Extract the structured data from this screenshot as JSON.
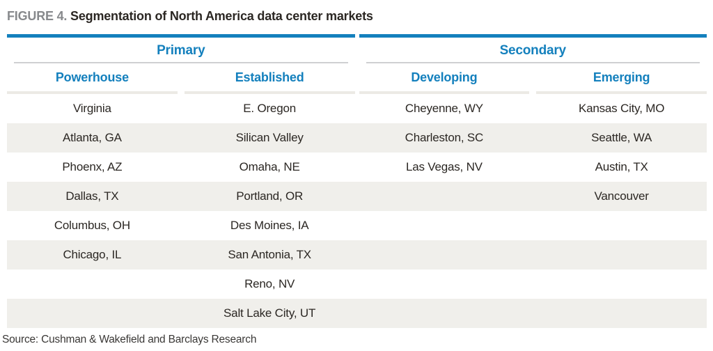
{
  "figure": {
    "label": "FIGURE 4.",
    "title": "Segmentation of North America data center markets"
  },
  "table": {
    "groups": [
      {
        "label": "Primary",
        "columns": [
          "Powerhouse",
          "Established"
        ]
      },
      {
        "label": "Secondary",
        "columns": [
          "Developing",
          "Emerging"
        ]
      }
    ],
    "rows": [
      [
        "Virginia",
        "E. Oregon",
        "Cheyenne, WY",
        "Kansas City, MO"
      ],
      [
        "Atlanta, GA",
        "Silican Valley",
        "Charleston, SC",
        "Seattle, WA"
      ],
      [
        "Phoenx, AZ",
        "Omaha, NE",
        "Las Vegas, NV",
        "Austin, TX"
      ],
      [
        "Dallas, TX",
        "Portland, OR",
        "",
        "Vancouver"
      ],
      [
        "Columbus, OH",
        "Des Moines, IA",
        "",
        ""
      ],
      [
        "Chicago, IL",
        "San Antonia, TX",
        "",
        ""
      ],
      [
        "",
        "Reno, NV",
        "",
        ""
      ],
      [
        "",
        "Salt Lake City, UT",
        "",
        ""
      ]
    ]
  },
  "source": "Source: Cushman & Wakefield and Barclays Research",
  "colors": {
    "accent_blue": "#1480bd",
    "row_stripe": "#f0efeb",
    "group_rule_gray": "#cfd0d2",
    "subheader_rule": "#eceae5",
    "figure_label_gray": "#87898c",
    "text_dark": "#2b2723"
  }
}
